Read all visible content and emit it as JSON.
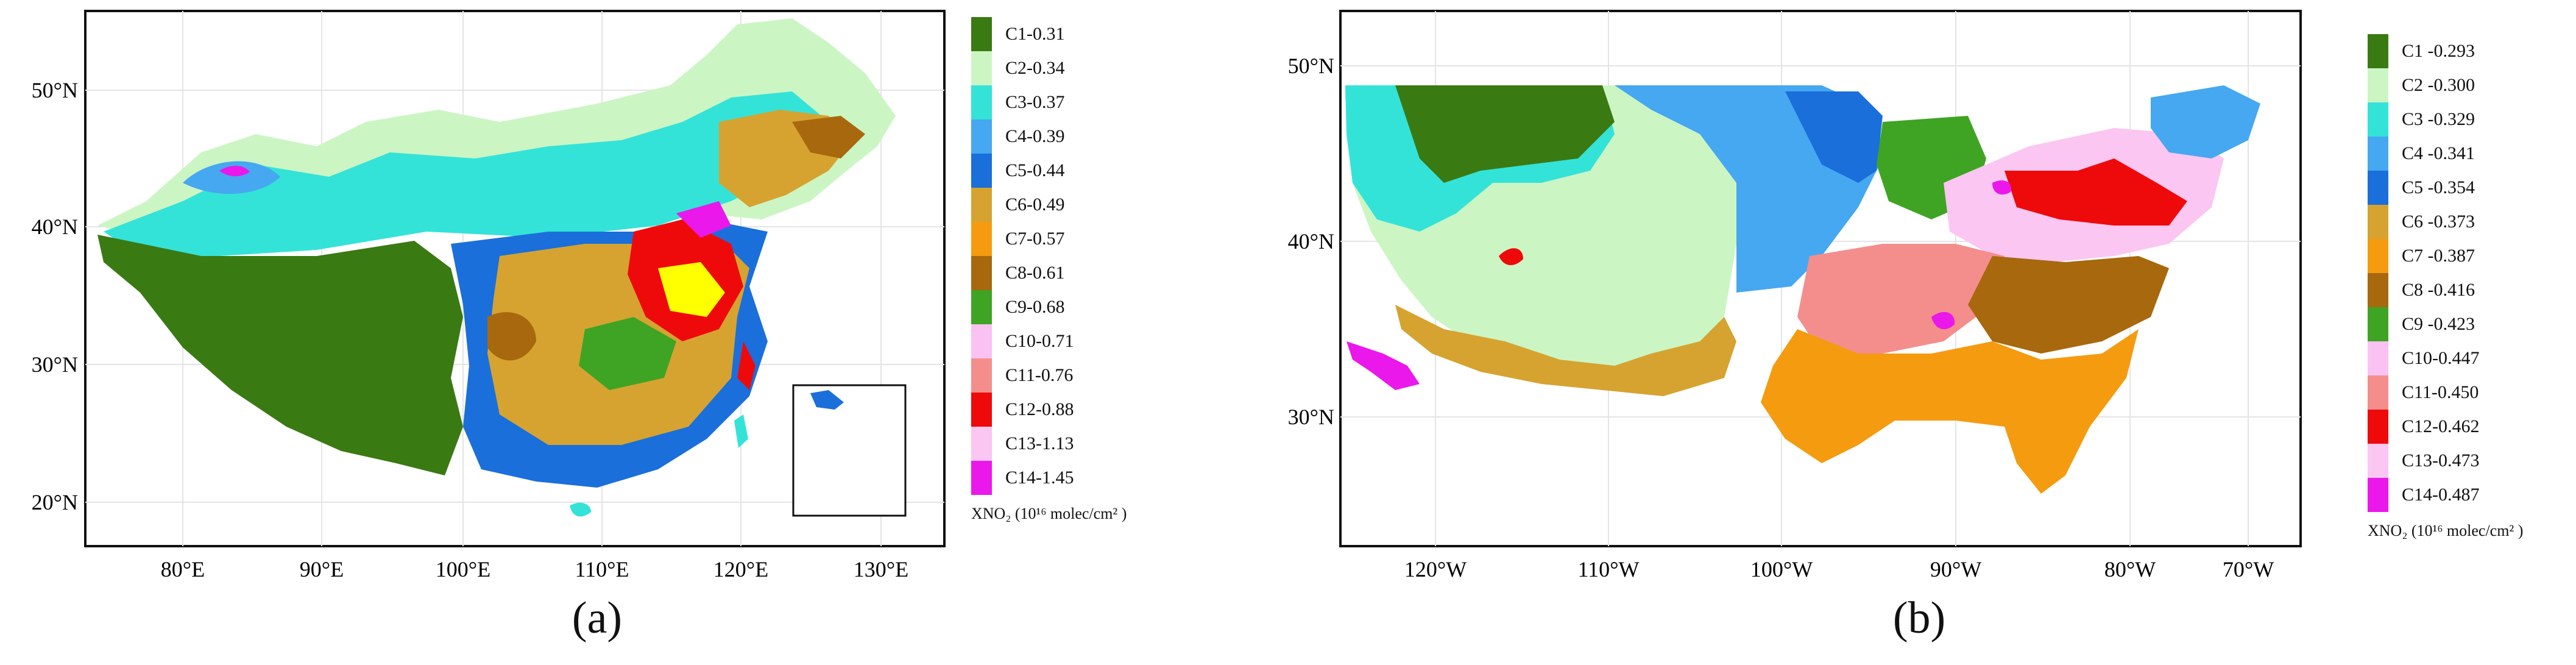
{
  "panels": [
    {
      "label": "(a)",
      "lat_ticks": [
        "50°N",
        "40°N",
        "30°N",
        "20°N"
      ],
      "lon_ticks": [
        "80°E",
        "90°E",
        "100°E",
        "110°E",
        "120°E",
        "130°E"
      ],
      "legend": {
        "title": "XNO₂ (10¹⁶ molec/cm² )",
        "classes": [
          {
            "label": "C1-0.31",
            "color": "#3a7a12"
          },
          {
            "label": "C2-0.34",
            "color": "#ccf5c4"
          },
          {
            "label": "C3-0.37",
            "color": "#33e3d8"
          },
          {
            "label": "C4-0.39",
            "color": "#45a8f0"
          },
          {
            "label": "C5-0.44",
            "color": "#1a6fdb"
          },
          {
            "label": "C6-0.49",
            "color": "#d6a330"
          },
          {
            "label": "C7-0.57",
            "color": "#f59b10"
          },
          {
            "label": "C8-0.61",
            "color": "#a8680d"
          },
          {
            "label": "C9-0.68",
            "color": "#3fa424"
          },
          {
            "label": "C10-0.71",
            "color": "#f9c2f2"
          },
          {
            "label": "C11-0.76",
            "color": "#f48e8c"
          },
          {
            "label": "C12-0.88",
            "color": "#ee0a0a"
          },
          {
            "label": "C13-1.13",
            "color": "#fbc6f2"
          },
          {
            "label": "C14-1.45",
            "color": "#ea18ea"
          }
        ]
      }
    },
    {
      "label": "(b)",
      "lat_ticks": [
        "50°N",
        "40°N",
        "30°N"
      ],
      "lon_ticks": [
        "120°W",
        "110°W",
        "100°W",
        "90°W",
        "80°W",
        "70°W"
      ],
      "legend": {
        "title": "XNO₂ (10¹⁶ molec/cm² )",
        "classes": [
          {
            "label": "C1 -0.293",
            "color": "#3a7a12"
          },
          {
            "label": "C2 -0.300",
            "color": "#ccf5c4"
          },
          {
            "label": "C3 -0.329",
            "color": "#33e3d8"
          },
          {
            "label": "C4 -0.341",
            "color": "#45a8f0"
          },
          {
            "label": "C5 -0.354",
            "color": "#1a6fdb"
          },
          {
            "label": "C6 -0.373",
            "color": "#d6a330"
          },
          {
            "label": "C7 -0.387",
            "color": "#f59b10"
          },
          {
            "label": "C8 -0.416",
            "color": "#a8680d"
          },
          {
            "label": "C9 -0.423",
            "color": "#3fa424"
          },
          {
            "label": "C10-0.447",
            "color": "#f9c2f2"
          },
          {
            "label": "C11-0.450",
            "color": "#f48e8c"
          },
          {
            "label": "C12-0.462",
            "color": "#ee0a0a"
          },
          {
            "label": "C13-0.473",
            "color": "#fbc6f2"
          },
          {
            "label": "C14-0.487",
            "color": "#ea18ea"
          }
        ]
      }
    }
  ]
}
